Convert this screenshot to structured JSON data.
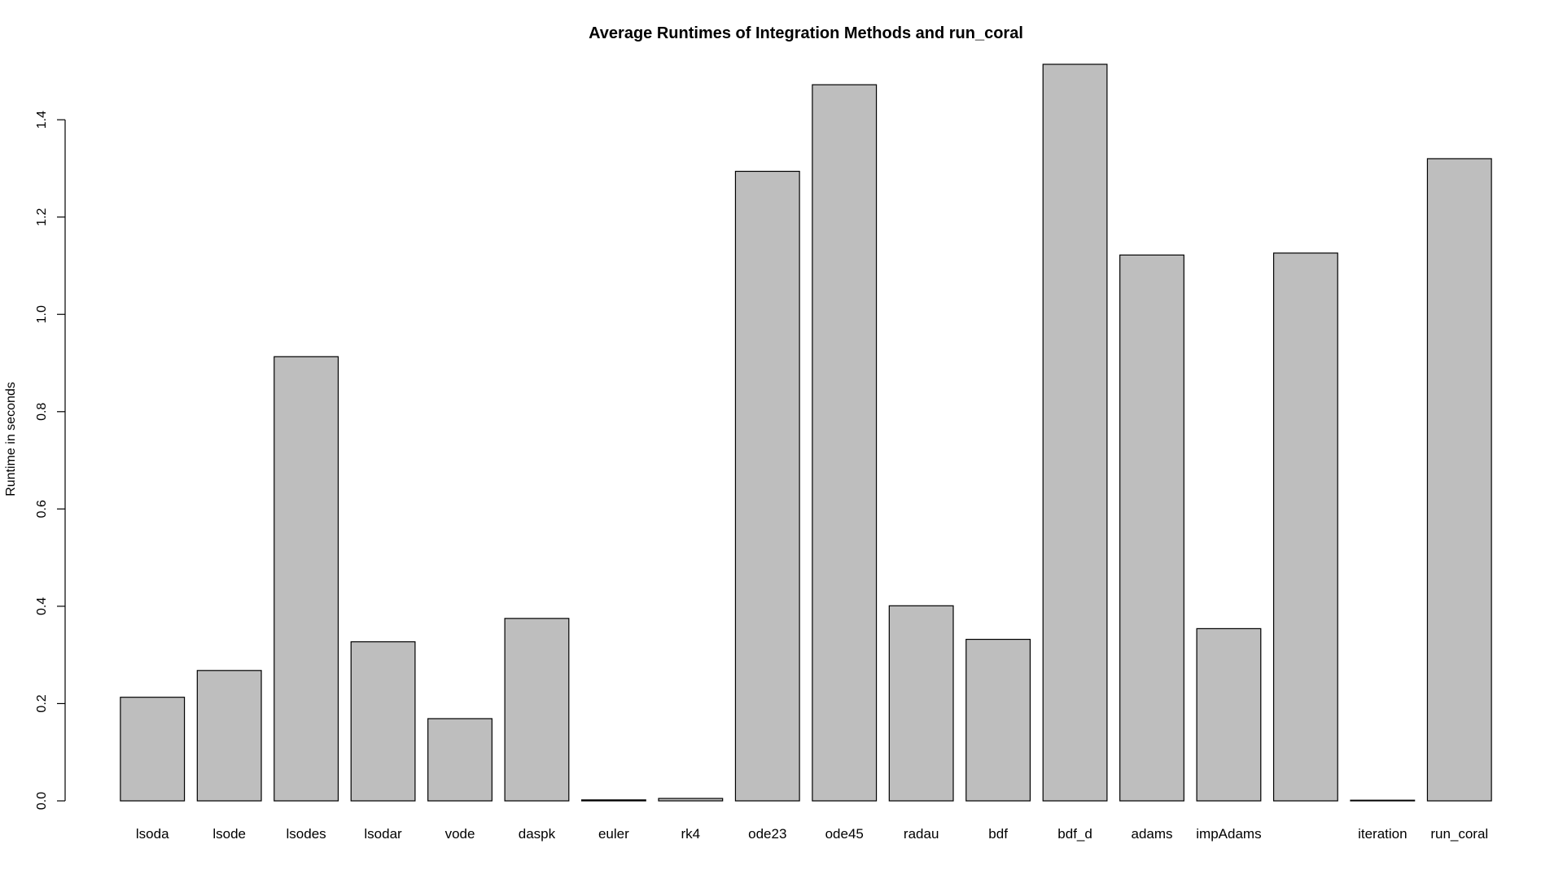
{
  "chart_data": {
    "type": "bar",
    "title": "Average Runtimes of Integration Methods and run_coral",
    "xlabel": "",
    "ylabel": "Runtime in seconds",
    "categories": [
      "lsoda",
      "lsode",
      "lsodes",
      "lsodar",
      "vode",
      "daspk",
      "euler",
      "rk4",
      "ode23",
      "ode45",
      "radau",
      "bdf",
      "bdf_d",
      "adams",
      "impAdams",
      "",
      "iteration",
      "run_coral"
    ],
    "values": [
      0.213,
      0.268,
      0.913,
      0.327,
      0.169,
      0.375,
      0.002,
      0.005,
      1.294,
      1.472,
      0.401,
      0.332,
      1.514,
      1.122,
      0.354,
      1.126,
      0.001,
      1.32
    ],
    "ylim": [
      0,
      1.514
    ],
    "yticks": [
      0.0,
      0.2,
      0.4,
      0.6,
      0.8,
      1.0,
      1.2,
      1.4
    ],
    "ytick_labels": [
      "0.0",
      "0.2",
      "0.4",
      "0.6",
      "0.8",
      "1.0",
      "1.2",
      "1.4"
    ],
    "grid": false,
    "legend": "none",
    "bar_color": "#bebebe",
    "bar_border_color": "#000000"
  }
}
